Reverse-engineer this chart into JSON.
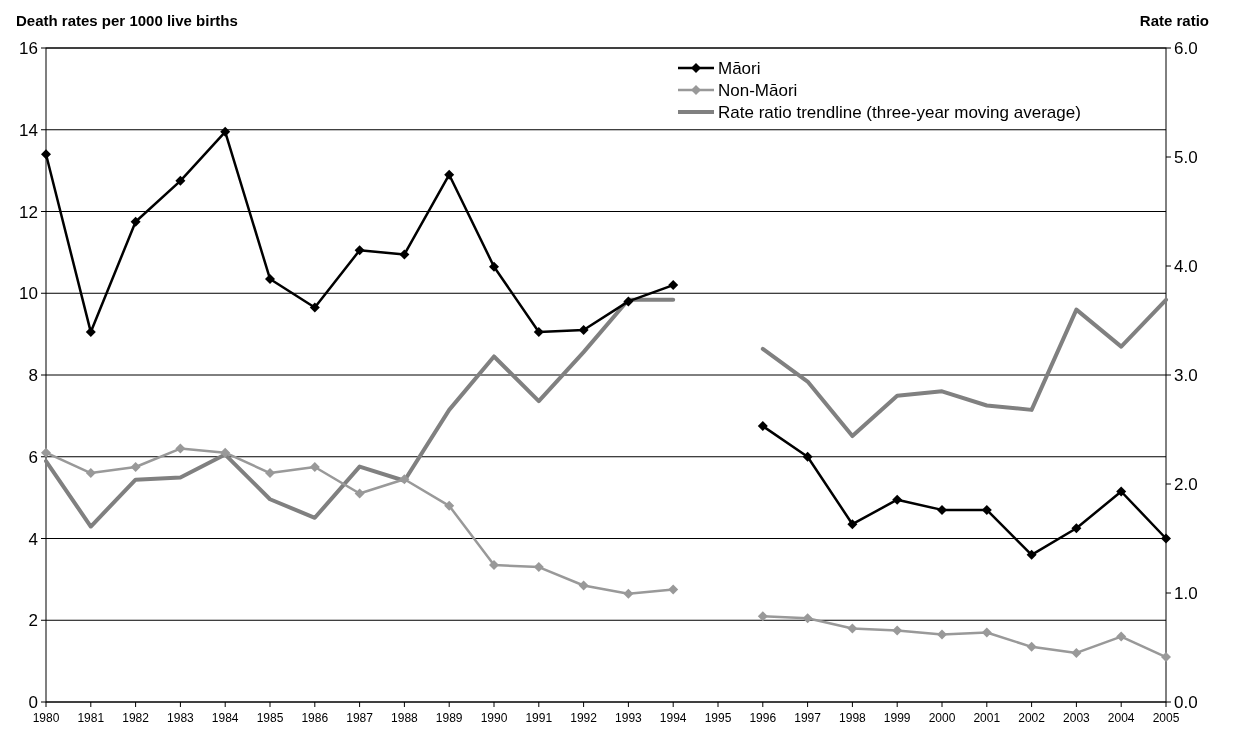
{
  "chart_data": {
    "type": "line",
    "ylabel": "Death rates per 1000 live births",
    "y2label": "Rate ratio",
    "categories": [
      "1980",
      "1981",
      "1982",
      "1983",
      "1984",
      "1985",
      "1986",
      "1987",
      "1988",
      "1989",
      "1990",
      "1991",
      "1992",
      "1993",
      "1994",
      "1995",
      "1996",
      "1997",
      "1998",
      "1999",
      "2000",
      "2001",
      "2002",
      "2003",
      "2004",
      "2005"
    ],
    "series": [
      {
        "name": "Māori",
        "color": "#000000",
        "marker": "diamond",
        "values": [
          13.4,
          9.05,
          11.75,
          12.75,
          13.95,
          10.35,
          9.65,
          11.05,
          10.95,
          12.9,
          10.65,
          9.05,
          9.1,
          9.8,
          10.2,
          null,
          6.75,
          6.0,
          4.35,
          4.95,
          4.7,
          4.7,
          3.6,
          4.25,
          5.15,
          4.0
        ]
      },
      {
        "name": "Non-Māori",
        "color": "#999999",
        "marker": "diamond",
        "values": [
          6.1,
          5.6,
          5.75,
          6.2,
          6.1,
          5.6,
          5.75,
          5.1,
          5.45,
          4.8,
          3.35,
          3.3,
          2.85,
          2.65,
          2.75,
          null,
          2.1,
          2.05,
          1.8,
          1.75,
          1.65,
          1.7,
          1.35,
          1.2,
          1.6,
          1.1
        ]
      },
      {
        "name": "Rate ratio trendline (three-year moving average)",
        "color": "#808080",
        "marker": "none",
        "axis": "y2",
        "values": [
          2.21,
          1.61,
          2.04,
          2.06,
          2.27,
          1.86,
          1.69,
          2.16,
          2.03,
          2.68,
          3.17,
          2.76,
          3.21,
          3.69,
          3.69,
          null,
          3.24,
          2.94,
          2.44,
          2.81,
          2.85,
          2.72,
          2.68,
          3.6,
          3.26,
          3.69
        ]
      }
    ],
    "ylim": [
      0,
      16
    ],
    "yticks": [
      0,
      2,
      4,
      6,
      8,
      10,
      12,
      14,
      16
    ],
    "y2lim": [
      0,
      6
    ],
    "y2ticks": [
      {
        "value": 0,
        "label": "0.0"
      },
      {
        "value": 1,
        "label": "1.0"
      },
      {
        "value": 2,
        "label": "2.0"
      },
      {
        "value": 3,
        "label": "3.0"
      },
      {
        "value": 4,
        "label": "4.0"
      },
      {
        "value": 5,
        "label": "5.0"
      },
      {
        "value": 6,
        "label": "6.0"
      }
    ],
    "grid": "y",
    "legend": "top right",
    "line_style": "solid"
  }
}
